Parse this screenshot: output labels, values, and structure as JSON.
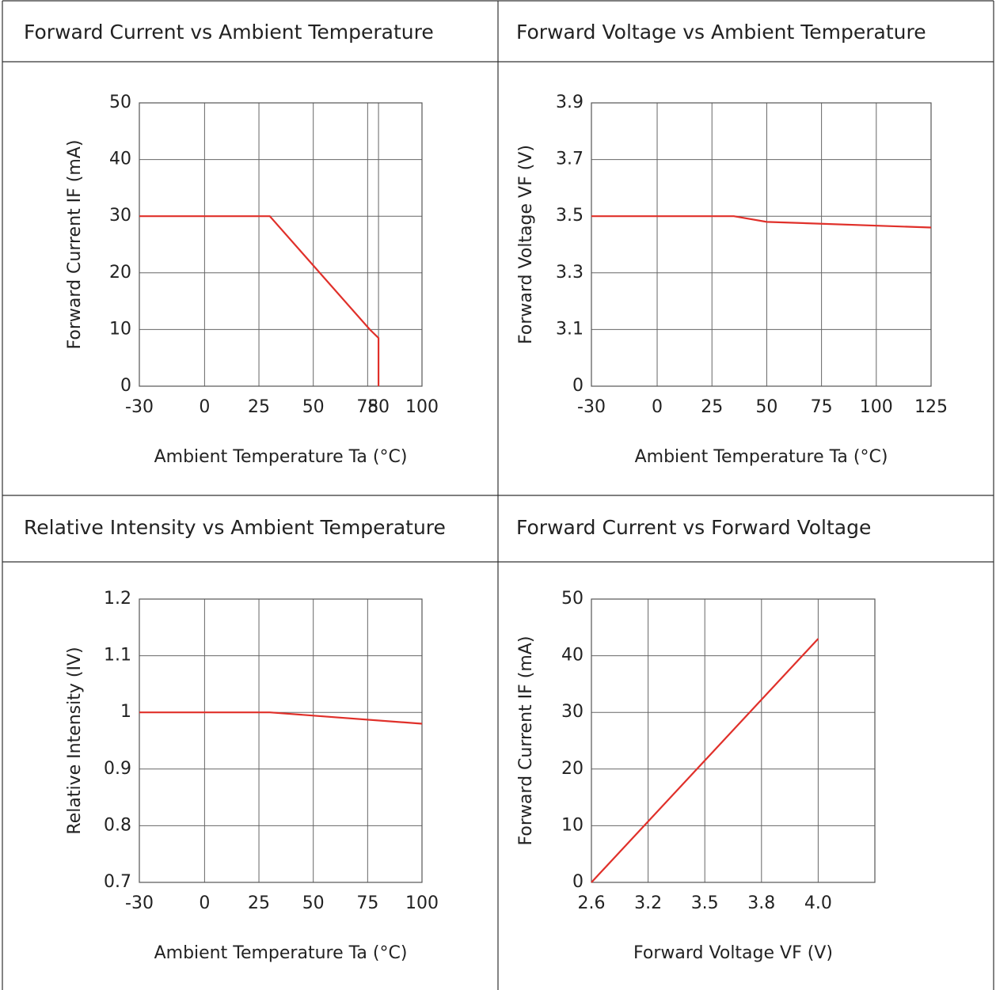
{
  "chart_data": [
    {
      "type": "line",
      "title": "Forward Current vs Ambient Temperature",
      "x_label": "Ambient Temperature Ta (°C)",
      "y_label": "Forward Current IF (mA)",
      "xscale": "linear",
      "xlim": [
        -30,
        100
      ],
      "xticks": [
        -30,
        0,
        25,
        50,
        75,
        80,
        100
      ],
      "ylim": [
        0,
        50
      ],
      "yticks": [
        0,
        10,
        20,
        30,
        40,
        50
      ],
      "grid": true,
      "x": [
        -30,
        30,
        76,
        80,
        80
      ],
      "values": [
        30,
        30,
        10,
        8.5,
        0
      ],
      "color": "#e0302a"
    },
    {
      "type": "line",
      "title": "Forward Voltage vs Ambient Temperature",
      "x_label": "Ambient Temperature Ta (°C)",
      "y_label": "Forward Voltage VF (V)",
      "xscale": "linear",
      "xlim": [
        -30,
        125
      ],
      "xticks": [
        -30,
        0,
        25,
        50,
        75,
        100,
        125
      ],
      "ylim": [
        2.9,
        3.9
      ],
      "yticks": [
        3.1,
        3.3,
        3.5,
        3.7,
        3.9
      ],
      "origin_label": "0",
      "grid": true,
      "x": [
        -30,
        35,
        50,
        125
      ],
      "values": [
        3.5,
        3.5,
        3.48,
        3.46
      ],
      "color": "#e0302a"
    },
    {
      "type": "line",
      "title": "Relative Intensity vs Ambient Temperature",
      "x_label": "Ambient Temperature Ta (°C)",
      "y_label": "Relative Intensity (IV)",
      "xscale": "linear",
      "xlim": [
        -30,
        100
      ],
      "xticks": [
        -30,
        0,
        25,
        50,
        75,
        100
      ],
      "ylim": [
        0.7,
        1.2
      ],
      "yticks": [
        0.7,
        0.8,
        0.9,
        1.0,
        1.1,
        1.2
      ],
      "grid": true,
      "x": [
        -30,
        30,
        100
      ],
      "values": [
        1.0,
        1.0,
        0.98
      ],
      "color": "#e0302a"
    },
    {
      "type": "line",
      "title": "Forward Current vs Forward Voltage",
      "x_label": "Forward Voltage VF (V)",
      "y_label": "Forward Current IF (mA)",
      "xscale": "tick-spaced",
      "xlim": [
        2.6,
        4.2
      ],
      "xticks": [
        2.6,
        3.2,
        3.5,
        3.8,
        {
          "value": 4.0,
          "label": "4.0"
        }
      ],
      "ylim": [
        0,
        50
      ],
      "yticks": [
        0,
        10,
        20,
        30,
        40,
        50
      ],
      "grid": true,
      "x": [
        2.6,
        4.0
      ],
      "values": [
        0,
        43
      ],
      "color": "#e0302a"
    }
  ]
}
